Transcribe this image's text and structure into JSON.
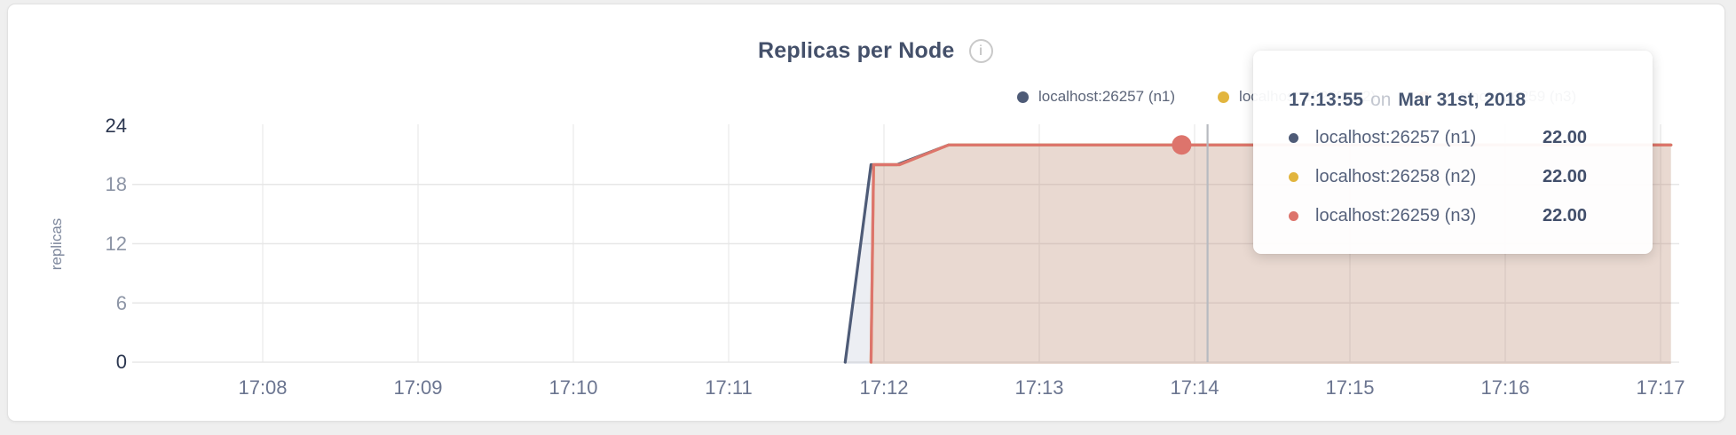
{
  "header": {
    "title": "Replicas per Node",
    "info_glyph": "i"
  },
  "legend": {
    "items": [
      {
        "label": "localhost:26257 (n1)",
        "color": "#4e5b77"
      },
      {
        "label": "localhost:26258 (n2)",
        "color": "#e2b53e"
      },
      {
        "label": "localhost:26259 (n3)",
        "color": "#dd746c"
      }
    ]
  },
  "chart_data": {
    "type": "area",
    "title": "Replicas per Node",
    "ylabel": "replicas",
    "ylim": [
      0,
      24
    ],
    "y_ticks": [
      0,
      6,
      12,
      18,
      24
    ],
    "x_ticks": [
      "17:08",
      "17:09",
      "17:10",
      "17:11",
      "17:12",
      "17:13",
      "17:14",
      "17:15",
      "17:16",
      "17:17"
    ],
    "grid": true,
    "legend_position": "top-right",
    "series": [
      {
        "name": "localhost:26257 (n1)",
        "color": "#4e5b77",
        "fill": "rgba(110,125,160,0.13)",
        "points": [
          [
            "17:11:45",
            0
          ],
          [
            "17:11:55",
            20
          ],
          [
            "17:12:05",
            20
          ],
          [
            "17:12:25",
            22
          ],
          [
            "17:17:04",
            22
          ]
        ]
      },
      {
        "name": "localhost:26258 (n2)",
        "color": "#e2b53e",
        "fill": "rgba(230,185,70,0.10)",
        "points": [
          [
            "17:11:55",
            0
          ],
          [
            "17:11:56",
            20
          ],
          [
            "17:12:06",
            20
          ],
          [
            "17:12:25",
            22
          ],
          [
            "17:17:04",
            22
          ]
        ]
      },
      {
        "name": "localhost:26259 (n3)",
        "color": "#dd746c",
        "fill": "rgba(222,115,105,0.13)",
        "points": [
          [
            "17:11:55",
            0
          ],
          [
            "17:11:56",
            20
          ],
          [
            "17:12:06",
            20
          ],
          [
            "17:12:25",
            22
          ],
          [
            "17:17:04",
            22
          ]
        ]
      }
    ],
    "hover": {
      "time": "17:13:55",
      "value": 22,
      "series": "localhost:26259 (n3)",
      "line_time": "17:14:05"
    }
  },
  "tooltip": {
    "time": "17:13:55",
    "conjunction": "on",
    "date": "Mar 31st, 2018",
    "rows": [
      {
        "name": "localhost:26257 (n1)",
        "value": "22.00",
        "color": "#4e5b77"
      },
      {
        "name": "localhost:26258 (n2)",
        "value": "22.00",
        "color": "#e2b53e"
      },
      {
        "name": "localhost:26259 (n3)",
        "value": "22.00",
        "color": "#dd746c"
      }
    ]
  }
}
